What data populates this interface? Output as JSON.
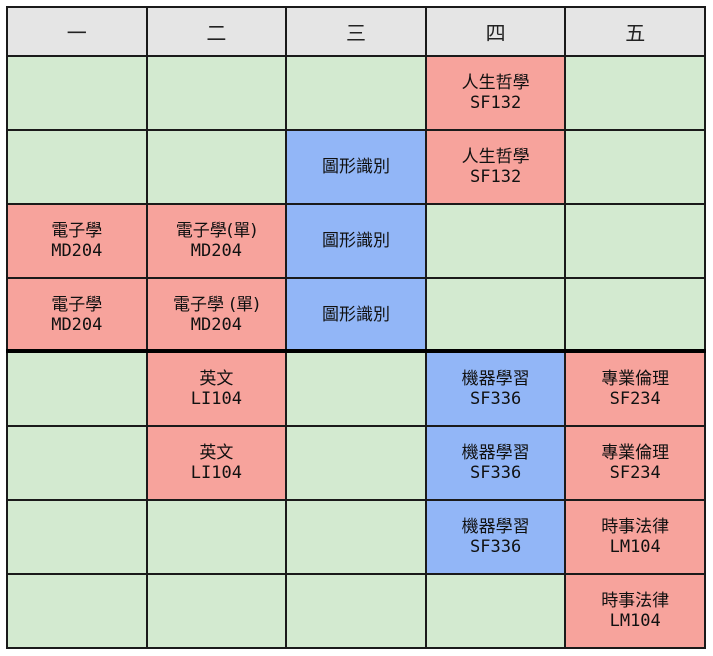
{
  "timetable": {
    "days": [
      "一",
      "二",
      "三",
      "四",
      "五"
    ],
    "rows": [
      [
        {
          "type": "empty"
        },
        {
          "type": "empty"
        },
        {
          "type": "empty"
        },
        {
          "type": "red",
          "name": "人生哲學",
          "room": "SF132"
        },
        {
          "type": "empty"
        }
      ],
      [
        {
          "type": "empty"
        },
        {
          "type": "empty"
        },
        {
          "type": "blue",
          "name": "圖形識別",
          "room": ""
        },
        {
          "type": "red",
          "name": "人生哲學",
          "room": "SF132"
        },
        {
          "type": "empty"
        }
      ],
      [
        {
          "type": "red",
          "name": "電子學",
          "room": "MD204"
        },
        {
          "type": "red",
          "name": "電子學(單)",
          "room": "MD204"
        },
        {
          "type": "blue",
          "name": "圖形識別",
          "room": ""
        },
        {
          "type": "empty"
        },
        {
          "type": "empty"
        }
      ],
      [
        {
          "type": "red",
          "name": "電子學",
          "room": "MD204"
        },
        {
          "type": "red",
          "name": "電子學 (單)",
          "room": "MD204"
        },
        {
          "type": "blue",
          "name": "圖形識別",
          "room": ""
        },
        {
          "type": "empty"
        },
        {
          "type": "empty"
        }
      ],
      [
        {
          "type": "empty"
        },
        {
          "type": "red",
          "name": "英文",
          "room": "LI104"
        },
        {
          "type": "empty"
        },
        {
          "type": "blue",
          "name": "機器學習",
          "room": "SF336"
        },
        {
          "type": "red",
          "name": "專業倫理",
          "room": "SF234"
        }
      ],
      [
        {
          "type": "empty"
        },
        {
          "type": "red",
          "name": "英文",
          "room": "LI104"
        },
        {
          "type": "empty"
        },
        {
          "type": "blue",
          "name": "機器學習",
          "room": "SF336"
        },
        {
          "type": "red",
          "name": "專業倫理",
          "room": "SF234"
        }
      ],
      [
        {
          "type": "empty"
        },
        {
          "type": "empty"
        },
        {
          "type": "empty"
        },
        {
          "type": "blue",
          "name": "機器學習",
          "room": "SF336"
        },
        {
          "type": "red",
          "name": "時事法律",
          "room": "LM104"
        }
      ],
      [
        {
          "type": "empty"
        },
        {
          "type": "empty"
        },
        {
          "type": "empty"
        },
        {
          "type": "empty"
        },
        {
          "type": "red",
          "name": "時事法律",
          "room": "LM104"
        }
      ]
    ]
  },
  "colors": {
    "empty": "#d3ead0",
    "red": "#f7a39c",
    "blue": "#92b6f7",
    "header": "#e5e5e5"
  }
}
